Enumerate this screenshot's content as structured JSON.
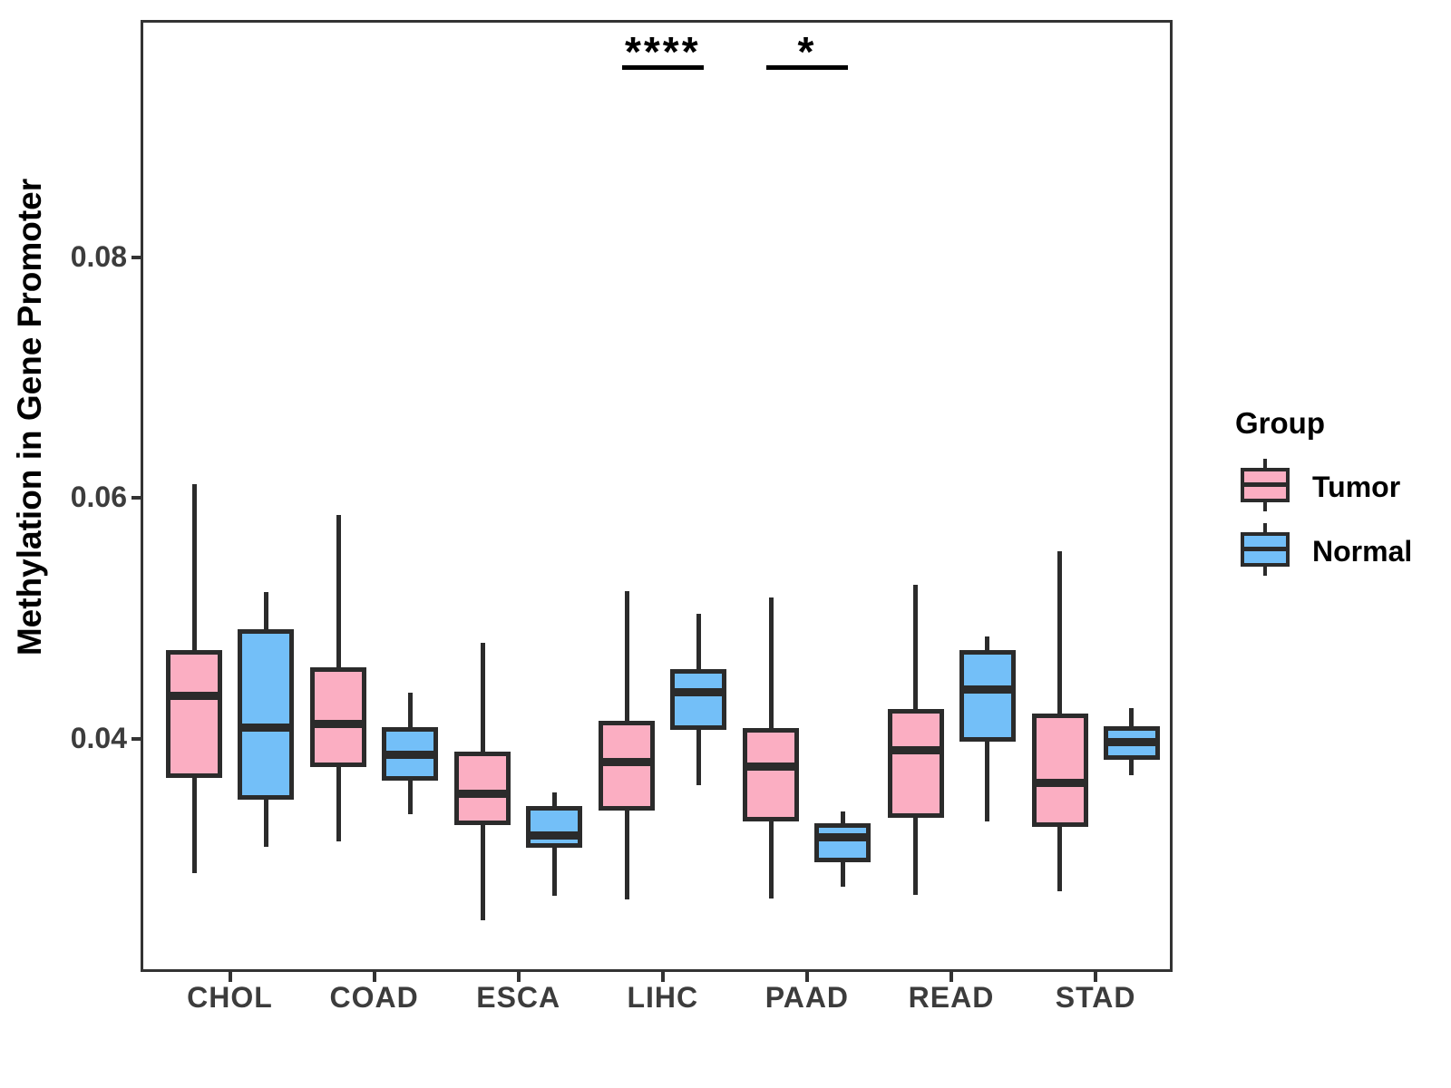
{
  "chart_data": {
    "type": "boxplot",
    "title": "",
    "xlabel": "",
    "ylabel": "Methylation in Gene Promoter",
    "legend_title": "Group",
    "legend_position": "right",
    "grid": "off",
    "categories": [
      "CHOL",
      "COAD",
      "ESCA",
      "LIHC",
      "PAAD",
      "READ",
      "STAD"
    ],
    "groups": [
      "Tumor",
      "Normal"
    ],
    "ylim": [
      0.0207,
      0.0996
    ],
    "yticks": [
      {
        "label": "0.04",
        "value": 0.04
      },
      {
        "label": "0.06",
        "value": 0.06
      },
      {
        "label": "0.08",
        "value": 0.08
      }
    ],
    "colors": {
      "tumor_fill": "#FBAEC2",
      "normal_fill": "#73BFF8",
      "box_border": "#2B2B2B",
      "panel_border": "#333333",
      "axis_text": "#3C3C3C",
      "annotation": "#000000"
    },
    "series": [
      {
        "name": "Tumor",
        "color": "#FBAEC2",
        "boxes": [
          {
            "category": "CHOL",
            "whisker_low": 0.0289,
            "q1": 0.0368,
            "median": 0.0436,
            "q3": 0.0474,
            "whisker_high": 0.0612
          },
          {
            "category": "COAD",
            "whisker_low": 0.0315,
            "q1": 0.0377,
            "median": 0.0413,
            "q3": 0.046,
            "whisker_high": 0.0586
          },
          {
            "category": "ESCA",
            "whisker_low": 0.025,
            "q1": 0.0329,
            "median": 0.0355,
            "q3": 0.039,
            "whisker_high": 0.048
          },
          {
            "category": "LIHC",
            "whisker_low": 0.0267,
            "q1": 0.0341,
            "median": 0.0381,
            "q3": 0.0415,
            "whisker_high": 0.0523
          },
          {
            "category": "PAAD",
            "whisker_low": 0.0268,
            "q1": 0.0332,
            "median": 0.0377,
            "q3": 0.0409,
            "whisker_high": 0.0518
          },
          {
            "category": "READ",
            "whisker_low": 0.0271,
            "q1": 0.0335,
            "median": 0.0391,
            "q3": 0.0425,
            "whisker_high": 0.0528
          },
          {
            "category": "STAD",
            "whisker_low": 0.0274,
            "q1": 0.0327,
            "median": 0.0364,
            "q3": 0.0421,
            "whisker_high": 0.0556
          }
        ]
      },
      {
        "name": "Normal",
        "color": "#73BFF8",
        "boxes": [
          {
            "category": "CHOL",
            "whisker_low": 0.0311,
            "q1": 0.035,
            "median": 0.041,
            "q3": 0.0491,
            "whisker_high": 0.0522
          },
          {
            "category": "COAD",
            "whisker_low": 0.0338,
            "q1": 0.0366,
            "median": 0.0387,
            "q3": 0.041,
            "whisker_high": 0.0439
          },
          {
            "category": "ESCA",
            "whisker_low": 0.027,
            "q1": 0.031,
            "median": 0.032,
            "q3": 0.0345,
            "whisker_high": 0.0356
          },
          {
            "category": "LIHC",
            "whisker_low": 0.0362,
            "q1": 0.0408,
            "median": 0.0439,
            "q3": 0.0458,
            "whisker_high": 0.0504
          },
          {
            "category": "PAAD",
            "whisker_low": 0.0278,
            "q1": 0.0298,
            "median": 0.0319,
            "q3": 0.033,
            "whisker_high": 0.034
          },
          {
            "category": "READ",
            "whisker_low": 0.0332,
            "q1": 0.0398,
            "median": 0.0441,
            "q3": 0.0474,
            "whisker_high": 0.0485
          },
          {
            "category": "STAD",
            "whisker_low": 0.037,
            "q1": 0.0383,
            "median": 0.0398,
            "q3": 0.0411,
            "whisker_high": 0.0426
          }
        ]
      }
    ],
    "annotations": [
      {
        "category": "LIHC",
        "label": "****"
      },
      {
        "category": "PAAD",
        "label": "*"
      }
    ]
  }
}
